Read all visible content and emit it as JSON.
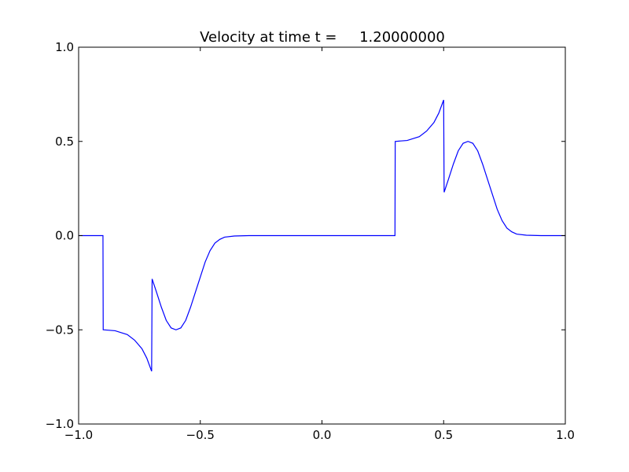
{
  "chart_data": {
    "type": "line",
    "title": "Velocity at time t =     1.20000000",
    "x": [
      -1,
      -0.9,
      -0.899,
      -0.85,
      -0.8,
      -0.77,
      -0.74,
      -0.72,
      -0.7,
      -0.698,
      -0.68,
      -0.66,
      -0.64,
      -0.62,
      -0.6,
      -0.58,
      -0.56,
      -0.54,
      -0.52,
      -0.5,
      -0.48,
      -0.46,
      -0.44,
      -0.42,
      -0.4,
      -0.36,
      -0.3,
      0.3,
      0.301,
      0.35,
      0.4,
      0.43,
      0.46,
      0.48,
      0.5,
      0.502,
      0.52,
      0.54,
      0.56,
      0.58,
      0.6,
      0.62,
      0.64,
      0.66,
      0.68,
      0.7,
      0.72,
      0.74,
      0.76,
      0.78,
      0.8,
      0.84,
      0.9,
      1
    ],
    "values": [
      0,
      0,
      -0.5,
      -0.505,
      -0.525,
      -0.555,
      -0.6,
      -0.65,
      -0.72,
      -0.23,
      -0.3,
      -0.38,
      -0.45,
      -0.49,
      -0.5,
      -0.49,
      -0.45,
      -0.38,
      -0.3,
      -0.22,
      -0.14,
      -0.08,
      -0.04,
      -0.02,
      -0.008,
      -0.002,
      0,
      0,
      0.5,
      0.505,
      0.525,
      0.555,
      0.6,
      0.65,
      0.72,
      0.23,
      0.3,
      0.38,
      0.45,
      0.49,
      0.5,
      0.49,
      0.45,
      0.38,
      0.3,
      0.22,
      0.14,
      0.08,
      0.04,
      0.02,
      0.008,
      0.002,
      0,
      0
    ],
    "color": "#0000ff",
    "xlim": [
      -1,
      1
    ],
    "ylim": [
      -1,
      1
    ],
    "xticks": [
      {
        "value": -1,
        "label": "−1.0"
      },
      {
        "value": -0.5,
        "label": "−0.5"
      },
      {
        "value": 0,
        "label": "0.0"
      },
      {
        "value": 0.5,
        "label": "0.5"
      },
      {
        "value": 1,
        "label": "1.0"
      }
    ],
    "yticks": [
      {
        "value": -1,
        "label": "−1.0"
      },
      {
        "value": -0.5,
        "label": "−0.5"
      },
      {
        "value": 0,
        "label": "0.0"
      },
      {
        "value": 0.5,
        "label": "0.5"
      },
      {
        "value": 1,
        "label": "1.0"
      }
    ]
  }
}
